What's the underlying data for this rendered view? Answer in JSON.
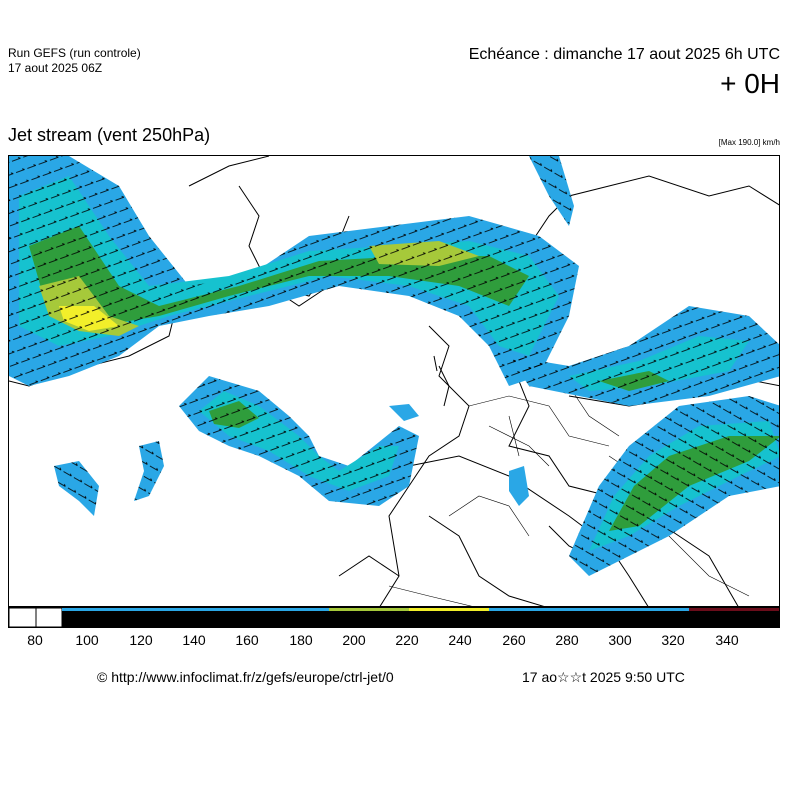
{
  "header": {
    "run_title": "Run GEFS (run controle)",
    "run_date": "17 aout 2025 06Z",
    "echeance": "Echéance : dimanche 17 aout 2025 6h UTC",
    "lead": "+ 0H",
    "map_title": "Jet stream (vent 250hPa)",
    "max_note": "[Max 190.0] km/h"
  },
  "legend": {
    "unit": "km/h",
    "ticks": [
      "80",
      "100",
      "120",
      "140",
      "160",
      "180",
      "200",
      "220",
      "240",
      "260",
      "280",
      "300",
      "320",
      "340"
    ],
    "colors": {
      "white": "#ffffff",
      "blue": "#1e78ff",
      "light_blue": "#2aa7e6",
      "cyan": "#16c2cf",
      "green": "#2f9d3c",
      "yellow_green": "#a6c93a",
      "yellow": "#f2ef2a",
      "black": "#000000",
      "dark_red": "#6b0d1b"
    }
  },
  "footer": {
    "credit": "© http://www.infoclimat.fr/z/gefs/europe/ctrl-jet/0",
    "timestamp": "17 ao☆☆t 2025  9:50 UTC"
  }
}
